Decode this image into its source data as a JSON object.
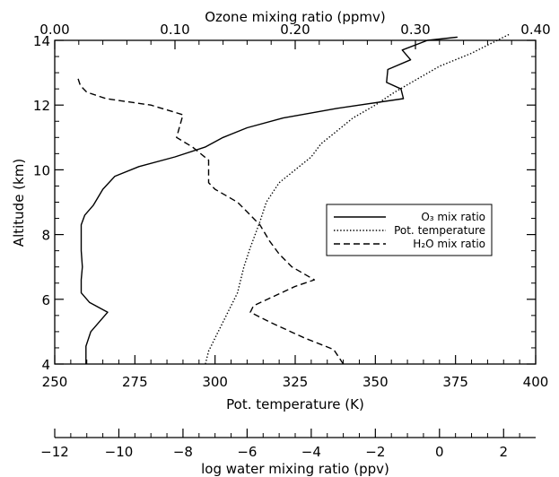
{
  "chart_data": {
    "type": "line",
    "ylabel": "Altitude (km)",
    "ylim": [
      4,
      14
    ],
    "yticks": [
      4,
      6,
      8,
      10,
      12,
      14
    ],
    "axes": {
      "ozone": {
        "label": "Ozone mixing ratio (ppmv)",
        "range": [
          0,
          0.4
        ],
        "ticks": [
          "0.00",
          "0.10",
          "0.20",
          "0.30",
          "0.40"
        ],
        "tick_values": [
          0,
          0.1,
          0.2,
          0.3,
          0.4
        ],
        "position": "top"
      },
      "temperature": {
        "label": "Pot. temperature (K)",
        "range": [
          250,
          400
        ],
        "ticks": [
          "250",
          "275",
          "300",
          "325",
          "350",
          "375",
          "400"
        ],
        "tick_values": [
          250,
          275,
          300,
          325,
          350,
          375,
          400
        ],
        "position": "bottom"
      },
      "water": {
        "label": "log water mixing ratio (ppv)",
        "range": [
          -12,
          3
        ],
        "ticks": [
          "−12",
          "−10",
          "−8",
          "−6",
          "−4",
          "−2",
          "0",
          "2"
        ],
        "tick_values": [
          -12,
          -10,
          -8,
          -6,
          -4,
          -2,
          0,
          2
        ],
        "position": "bottom-separate"
      }
    },
    "legend_position": "center-right",
    "series": [
      {
        "name": "O₃ mix ratio",
        "axis": "ozone",
        "style": "solid",
        "points": [
          [
            0.026,
            4.0
          ],
          [
            0.026,
            4.55
          ],
          [
            0.03,
            5.0
          ],
          [
            0.044,
            5.6
          ],
          [
            0.029,
            5.9
          ],
          [
            0.022,
            6.2
          ],
          [
            0.022,
            6.6
          ],
          [
            0.023,
            7.0
          ],
          [
            0.022,
            7.5
          ],
          [
            0.022,
            8.0
          ],
          [
            0.022,
            8.3
          ],
          [
            0.025,
            8.6
          ],
          [
            0.032,
            8.9
          ],
          [
            0.04,
            9.4
          ],
          [
            0.05,
            9.8
          ],
          [
            0.07,
            10.1
          ],
          [
            0.1,
            10.4
          ],
          [
            0.125,
            10.7
          ],
          [
            0.14,
            11.0
          ],
          [
            0.16,
            11.3
          ],
          [
            0.19,
            11.6
          ],
          [
            0.235,
            11.9
          ],
          [
            0.29,
            12.2
          ],
          [
            0.288,
            12.5
          ],
          [
            0.276,
            12.7
          ],
          [
            0.277,
            13.1
          ],
          [
            0.296,
            13.4
          ],
          [
            0.289,
            13.7
          ],
          [
            0.31,
            14.0
          ],
          [
            0.335,
            14.1
          ]
        ]
      },
      {
        "name": "Pot. temperature",
        "axis": "temperature",
        "style": "dotted",
        "points": [
          [
            297,
            4.0
          ],
          [
            298,
            4.4
          ],
          [
            301,
            5.0
          ],
          [
            304,
            5.6
          ],
          [
            307,
            6.2
          ],
          [
            309,
            7.0
          ],
          [
            311,
            7.6
          ],
          [
            314,
            8.4
          ],
          [
            316,
            9.0
          ],
          [
            320,
            9.6
          ],
          [
            325,
            10.0
          ],
          [
            330,
            10.4
          ],
          [
            333,
            10.8
          ],
          [
            338,
            11.2
          ],
          [
            343,
            11.6
          ],
          [
            350,
            12.0
          ],
          [
            356,
            12.4
          ],
          [
            363,
            12.8
          ],
          [
            370,
            13.2
          ],
          [
            380,
            13.6
          ],
          [
            388,
            14.0
          ],
          [
            392,
            14.2
          ]
        ]
      },
      {
        "name": "H₂O mix ratio",
        "axis": "water",
        "style": "dashed",
        "points": [
          [
            -3.0,
            4.0
          ],
          [
            -3.3,
            4.45
          ],
          [
            -4.2,
            4.8
          ],
          [
            -5.3,
            5.3
          ],
          [
            -5.9,
            5.6
          ],
          [
            -5.8,
            5.8
          ],
          [
            -4.5,
            6.4
          ],
          [
            -3.9,
            6.6
          ],
          [
            -4.6,
            7.0
          ],
          [
            -5.0,
            7.4
          ],
          [
            -5.3,
            7.8
          ],
          [
            -5.6,
            8.3
          ],
          [
            -5.9,
            8.6
          ],
          [
            -6.3,
            9.0
          ],
          [
            -7.0,
            9.4
          ],
          [
            -7.2,
            9.6
          ],
          [
            -7.2,
            10.0
          ],
          [
            -7.2,
            10.3
          ],
          [
            -7.7,
            10.7
          ],
          [
            -8.2,
            11.0
          ],
          [
            -8.0,
            11.7
          ],
          [
            -9.0,
            12.0
          ],
          [
            -10.4,
            12.2
          ],
          [
            -11.0,
            12.4
          ],
          [
            -11.2,
            12.6
          ],
          [
            -11.3,
            12.9
          ]
        ]
      }
    ]
  }
}
